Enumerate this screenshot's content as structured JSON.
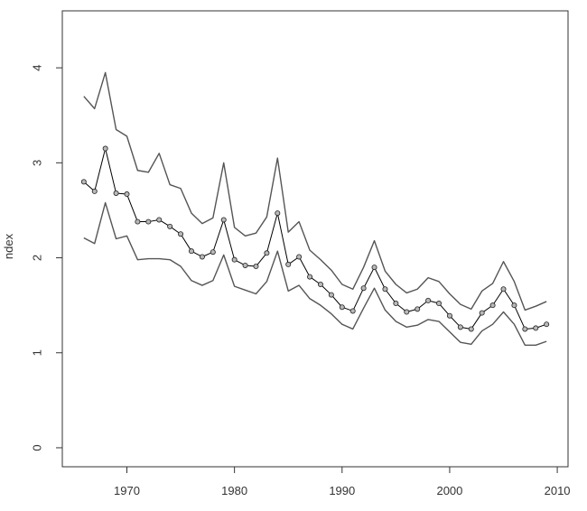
{
  "chart_data": {
    "type": "line",
    "title": "",
    "xlabel": "",
    "ylabel": "ndex",
    "xlim": [
      1964,
      2011
    ],
    "ylim": [
      -0.2,
      4.6
    ],
    "x_ticks": [
      1970,
      1980,
      1990,
      2000,
      2010
    ],
    "y_ticks": [
      0,
      1,
      2,
      3,
      4
    ],
    "grid": false,
    "legend": "none",
    "x": [
      1966,
      1967,
      1968,
      1969,
      1970,
      1971,
      1972,
      1973,
      1974,
      1975,
      1976,
      1977,
      1978,
      1979,
      1980,
      1981,
      1982,
      1983,
      1984,
      1985,
      1986,
      1987,
      1988,
      1989,
      1990,
      1991,
      1992,
      1993,
      1994,
      1995,
      1996,
      1997,
      1998,
      1999,
      2000,
      2001,
      2002,
      2003,
      2004,
      2005,
      2006,
      2007,
      2008,
      2009
    ],
    "series": [
      {
        "role": "upper",
        "color": "#555555",
        "values": [
          3.7,
          3.57,
          3.95,
          3.35,
          3.28,
          2.92,
          2.9,
          3.1,
          2.77,
          2.73,
          2.47,
          2.36,
          2.42,
          3.0,
          2.32,
          2.23,
          2.26,
          2.43,
          3.05,
          2.27,
          2.38,
          2.08,
          1.98,
          1.87,
          1.72,
          1.67,
          1.9,
          2.18,
          1.86,
          1.72,
          1.63,
          1.67,
          1.79,
          1.75,
          1.62,
          1.51,
          1.46,
          1.65,
          1.73,
          1.96,
          1.75,
          1.45,
          1.49,
          1.54
        ]
      },
      {
        "role": "estimate",
        "color": "#000000",
        "markers": true,
        "values": [
          2.8,
          2.7,
          3.15,
          2.68,
          2.67,
          2.38,
          2.38,
          2.4,
          2.33,
          2.25,
          2.07,
          2.01,
          2.06,
          2.4,
          1.98,
          1.92,
          1.91,
          2.05,
          2.47,
          1.93,
          2.01,
          1.8,
          1.72,
          1.61,
          1.48,
          1.44,
          1.68,
          1.9,
          1.67,
          1.52,
          1.43,
          1.46,
          1.55,
          1.52,
          1.39,
          1.27,
          1.25,
          1.42,
          1.5,
          1.67,
          1.5,
          1.25,
          1.26,
          1.3
        ]
      },
      {
        "role": "lower",
        "color": "#555555",
        "values": [
          2.21,
          2.15,
          2.58,
          2.2,
          2.23,
          1.98,
          1.99,
          1.99,
          1.98,
          1.91,
          1.76,
          1.71,
          1.76,
          2.03,
          1.7,
          1.66,
          1.62,
          1.75,
          2.07,
          1.65,
          1.71,
          1.57,
          1.5,
          1.41,
          1.3,
          1.25,
          1.47,
          1.68,
          1.45,
          1.33,
          1.27,
          1.29,
          1.35,
          1.33,
          1.22,
          1.11,
          1.09,
          1.23,
          1.3,
          1.43,
          1.3,
          1.08,
          1.08,
          1.12
        ]
      }
    ]
  }
}
